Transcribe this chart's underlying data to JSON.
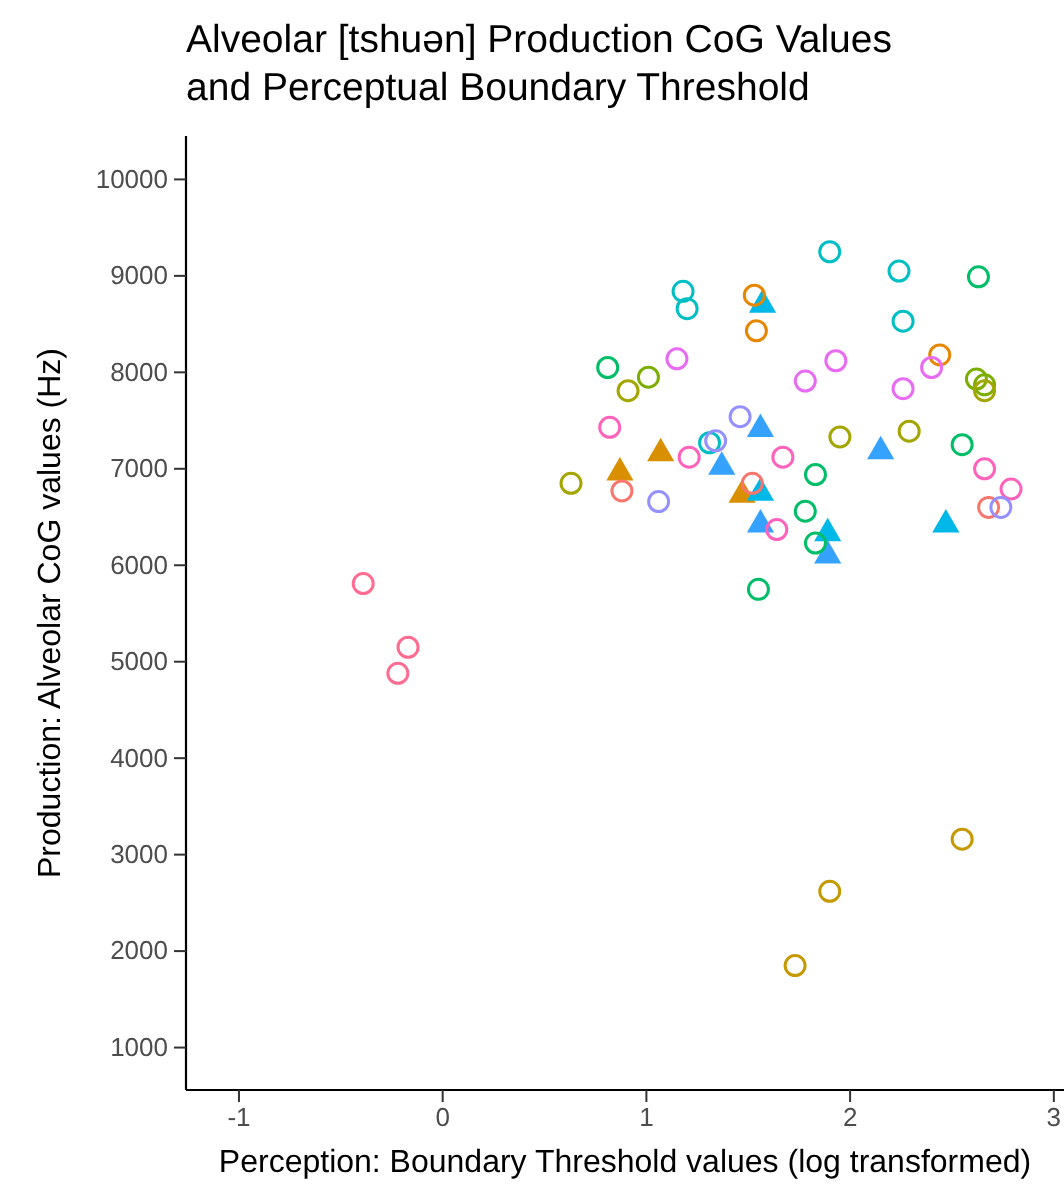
{
  "chart_data": {
    "type": "scatter",
    "title": "Alveolar [tshuən] Production CoG Values\nand Perceptual Boundary Threshold",
    "xlabel": "Perception: Boundary Threshold values (log transformed)",
    "ylabel": "Production: Alveolar CoG values (Hz)",
    "xlim": [
      -1.26,
      3.05
    ],
    "xticks": [
      -1,
      0,
      1,
      2,
      3
    ],
    "ylim": [
      560,
      10450
    ],
    "yticks": [
      1000,
      2000,
      3000,
      4000,
      5000,
      6000,
      7000,
      8000,
      9000,
      10000
    ],
    "grid": false,
    "marker": "circle",
    "series": [
      {
        "color": "#00bfc4",
        "x": [
          1.9,
          2.24,
          1.18,
          1.2,
          2.26,
          1.31
        ],
        "values": [
          9250,
          9050,
          8840,
          8660,
          8530,
          7270
        ]
      },
      {
        "color": "#00be67",
        "x": [
          2.63,
          0.81,
          2.55,
          1.83,
          1.78,
          1.83,
          1.55
        ],
        "values": [
          8990,
          8050,
          7250,
          6940,
          6560,
          6230,
          5750
        ]
      },
      {
        "color": "#7cae00",
        "x": [
          1.01,
          2.62,
          2.66
        ],
        "values": [
          7950,
          7930,
          7870
        ]
      },
      {
        "color": "#a3a500",
        "x": [
          0.91,
          1.95,
          2.29,
          0.63,
          2.66
        ],
        "values": [
          7810,
          7330,
          7390,
          6850,
          7810
        ]
      },
      {
        "color": "#c49a00",
        "x": [
          2.55,
          1.9,
          1.73
        ],
        "values": [
          3160,
          2620,
          1850
        ]
      },
      {
        "color": "#e58700",
        "x": [
          1.53,
          1.54,
          2.44
        ],
        "values": [
          8800,
          8430,
          8180
        ]
      },
      {
        "color": "#e76bf3",
        "x": [
          1.15,
          1.93,
          1.78,
          2.26,
          2.4
        ],
        "values": [
          8140,
          8120,
          7910,
          7830,
          8050
        ]
      },
      {
        "color": "#ff62bc",
        "x": [
          0.82,
          1.21,
          1.67,
          1.64,
          2.66,
          2.79
        ],
        "values": [
          7430,
          7120,
          7120,
          6370,
          7000,
          6790
        ]
      },
      {
        "color": "#ff6c91",
        "x": [
          -0.39,
          -0.17,
          -0.22
        ],
        "values": [
          5810,
          5150,
          4880
        ]
      },
      {
        "color": "#f8766d",
        "x": [
          0.88,
          1.52,
          2.68
        ],
        "values": [
          6770,
          6850,
          6600
        ]
      },
      {
        "color": "#9590ff",
        "x": [
          1.46,
          1.34,
          1.06,
          2.74
        ],
        "values": [
          7540,
          7290,
          6660,
          6600
        ]
      },
      {
        "color": "#d89000",
        "marker": "triangle",
        "x": [
          1.07,
          0.87,
          1.47
        ],
        "values": [
          7160,
          6960,
          6730
        ]
      },
      {
        "color": "#00b8e7",
        "marker": "triangle",
        "x": [
          1.57,
          1.56,
          1.89,
          2.47
        ],
        "values": [
          8700,
          6750,
          6330,
          6420
        ]
      },
      {
        "color": "#35a2ff",
        "marker": "triangle",
        "x": [
          1.56,
          1.37,
          2.15,
          1.56,
          1.89
        ],
        "values": [
          7410,
          7020,
          7180,
          6420,
          6100
        ]
      }
    ]
  }
}
